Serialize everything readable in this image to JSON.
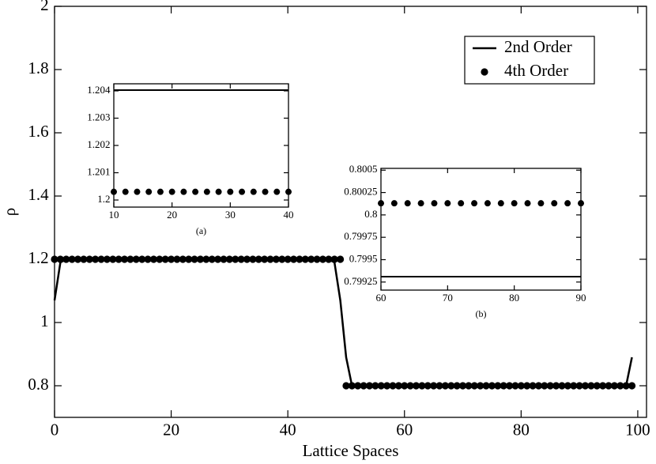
{
  "chart_data": [
    {
      "type": "line",
      "xlabel": "Lattice Spaces",
      "ylabel": "ρ",
      "legend": "upper right",
      "x": [
        0,
        1,
        2,
        3,
        4,
        5,
        6,
        7,
        8,
        9,
        10,
        11,
        12,
        13,
        14,
        15,
        16,
        17,
        18,
        19,
        20,
        21,
        22,
        23,
        24,
        25,
        26,
        27,
        28,
        29,
        30,
        31,
        32,
        33,
        34,
        35,
        36,
        37,
        38,
        39,
        40,
        41,
        42,
        43,
        44,
        45,
        46,
        47,
        48,
        49,
        50,
        51,
        52,
        53,
        54,
        55,
        56,
        57,
        58,
        59,
        60,
        61,
        62,
        63,
        64,
        65,
        66,
        67,
        68,
        69,
        70,
        71,
        72,
        73,
        74,
        75,
        76,
        77,
        78,
        79,
        80,
        81,
        82,
        83,
        84,
        85,
        86,
        87,
        88,
        89,
        90,
        91,
        92,
        93,
        94,
        95,
        96,
        97,
        98,
        99
      ],
      "xlim": [
        0,
        101.5
      ],
      "ylim": [
        0.7,
        2
      ],
      "xticks": [
        0,
        20,
        40,
        60,
        80,
        100
      ],
      "yticks": [
        0.8,
        1,
        1.2,
        1.4,
        1.6,
        1.8,
        2
      ],
      "series": [
        {
          "name": "2nd Order",
          "color": "#000000",
          "mode": "line",
          "values": [
            1.07,
            1.19,
            1.2,
            1.2,
            1.2,
            1.2,
            1.2,
            1.2,
            1.2,
            1.2,
            1.2,
            1.2,
            1.2,
            1.2,
            1.2,
            1.2,
            1.2,
            1.2,
            1.2,
            1.2,
            1.2,
            1.2,
            1.2,
            1.2,
            1.2,
            1.2,
            1.2,
            1.2,
            1.2,
            1.2,
            1.2,
            1.2,
            1.2,
            1.2,
            1.2,
            1.2,
            1.2,
            1.2,
            1.2,
            1.2,
            1.2,
            1.2,
            1.2,
            1.2,
            1.2,
            1.2,
            1.2,
            1.2,
            1.19,
            1.07,
            0.89,
            0.8,
            0.8,
            0.8,
            0.8,
            0.8,
            0.8,
            0.8,
            0.8,
            0.8,
            0.8,
            0.8,
            0.8,
            0.8,
            0.8,
            0.8,
            0.8,
            0.8,
            0.8,
            0.8,
            0.8,
            0.8,
            0.8,
            0.8,
            0.8,
            0.8,
            0.8,
            0.8,
            0.8,
            0.8,
            0.8,
            0.8,
            0.8,
            0.8,
            0.8,
            0.8,
            0.8,
            0.8,
            0.8,
            0.8,
            0.8,
            0.8,
            0.8,
            0.8,
            0.8,
            0.8,
            0.8,
            0.8,
            0.8,
            0.89
          ]
        },
        {
          "name": "4th Order",
          "color": "#000000",
          "mode": "markers",
          "values": [
            1.2,
            1.2,
            1.2,
            1.2,
            1.2,
            1.2,
            1.2,
            1.2,
            1.2,
            1.2,
            1.2,
            1.2,
            1.2,
            1.2,
            1.2,
            1.2,
            1.2,
            1.2,
            1.2,
            1.2,
            1.2,
            1.2,
            1.2,
            1.2,
            1.2,
            1.2,
            1.2,
            1.2,
            1.2,
            1.2,
            1.2,
            1.2,
            1.2,
            1.2,
            1.2,
            1.2,
            1.2,
            1.2,
            1.2,
            1.2,
            1.2,
            1.2,
            1.2,
            1.2,
            1.2,
            1.2,
            1.2,
            1.2,
            1.2,
            1.2,
            0.8,
            0.8,
            0.8,
            0.8,
            0.8,
            0.8,
            0.8,
            0.8,
            0.8,
            0.8,
            0.8,
            0.8,
            0.8,
            0.8,
            0.8,
            0.8,
            0.8,
            0.8,
            0.8,
            0.8,
            0.8,
            0.8,
            0.8,
            0.8,
            0.8,
            0.8,
            0.8,
            0.8,
            0.8,
            0.8,
            0.8,
            0.8,
            0.8,
            0.8,
            0.8,
            0.8,
            0.8,
            0.8,
            0.8,
            0.8,
            0.8,
            0.8,
            0.8,
            0.8,
            0.8,
            0.8,
            0.8,
            0.8,
            0.8,
            0.8
          ]
        }
      ]
    },
    {
      "type": "line",
      "caption": "(a)",
      "x": [
        10,
        12,
        14,
        16,
        18,
        20,
        22,
        24,
        26,
        28,
        30,
        32,
        34,
        36,
        38,
        40
      ],
      "xlim": [
        10,
        40
      ],
      "ylim": [
        1.19974,
        1.20426
      ],
      "xticks": [
        10,
        20,
        30,
        40
      ],
      "yticks": [
        1.2,
        1.201,
        1.202,
        1.203,
        1.204
      ],
      "series": [
        {
          "color": "#000000",
          "mode": "line",
          "values": [
            1.20403,
            1.20403,
            1.20403,
            1.20403,
            1.20403,
            1.20403,
            1.20403,
            1.20403,
            1.20403,
            1.20403,
            1.20403,
            1.20403,
            1.20403,
            1.20403,
            1.20403,
            1.20403
          ]
        },
        {
          "color": "#000000",
          "mode": "markers",
          "values": [
            1.2003,
            1.2003,
            1.2003,
            1.2003,
            1.2003,
            1.2003,
            1.2003,
            1.2003,
            1.2003,
            1.2003,
            1.2003,
            1.2003,
            1.2003,
            1.2003,
            1.2003,
            1.2003
          ]
        }
      ]
    },
    {
      "type": "line",
      "caption": "(b)",
      "x": [
        60,
        62,
        64,
        66,
        68,
        70,
        72,
        74,
        76,
        78,
        80,
        82,
        84,
        86,
        88,
        90
      ],
      "xlim": [
        60,
        90
      ],
      "ylim": [
        0.79916,
        0.80052
      ],
      "xticks": [
        60,
        70,
        80,
        90
      ],
      "yticks": [
        0.79925,
        0.7995,
        0.79975,
        0.8,
        0.80025,
        0.8005
      ],
      "series": [
        {
          "color": "#000000",
          "mode": "line",
          "values": [
            0.79931,
            0.79931,
            0.79931,
            0.79931,
            0.79931,
            0.79931,
            0.79931,
            0.79931,
            0.79931,
            0.79931,
            0.79931,
            0.79931,
            0.79931,
            0.79931,
            0.79931,
            0.79931
          ]
        },
        {
          "color": "#000000",
          "mode": "markers",
          "values": [
            0.80013,
            0.80013,
            0.80013,
            0.80013,
            0.80013,
            0.80013,
            0.80013,
            0.80013,
            0.80013,
            0.80013,
            0.80013,
            0.80013,
            0.80013,
            0.80013,
            0.80013,
            0.80013
          ]
        }
      ]
    }
  ]
}
